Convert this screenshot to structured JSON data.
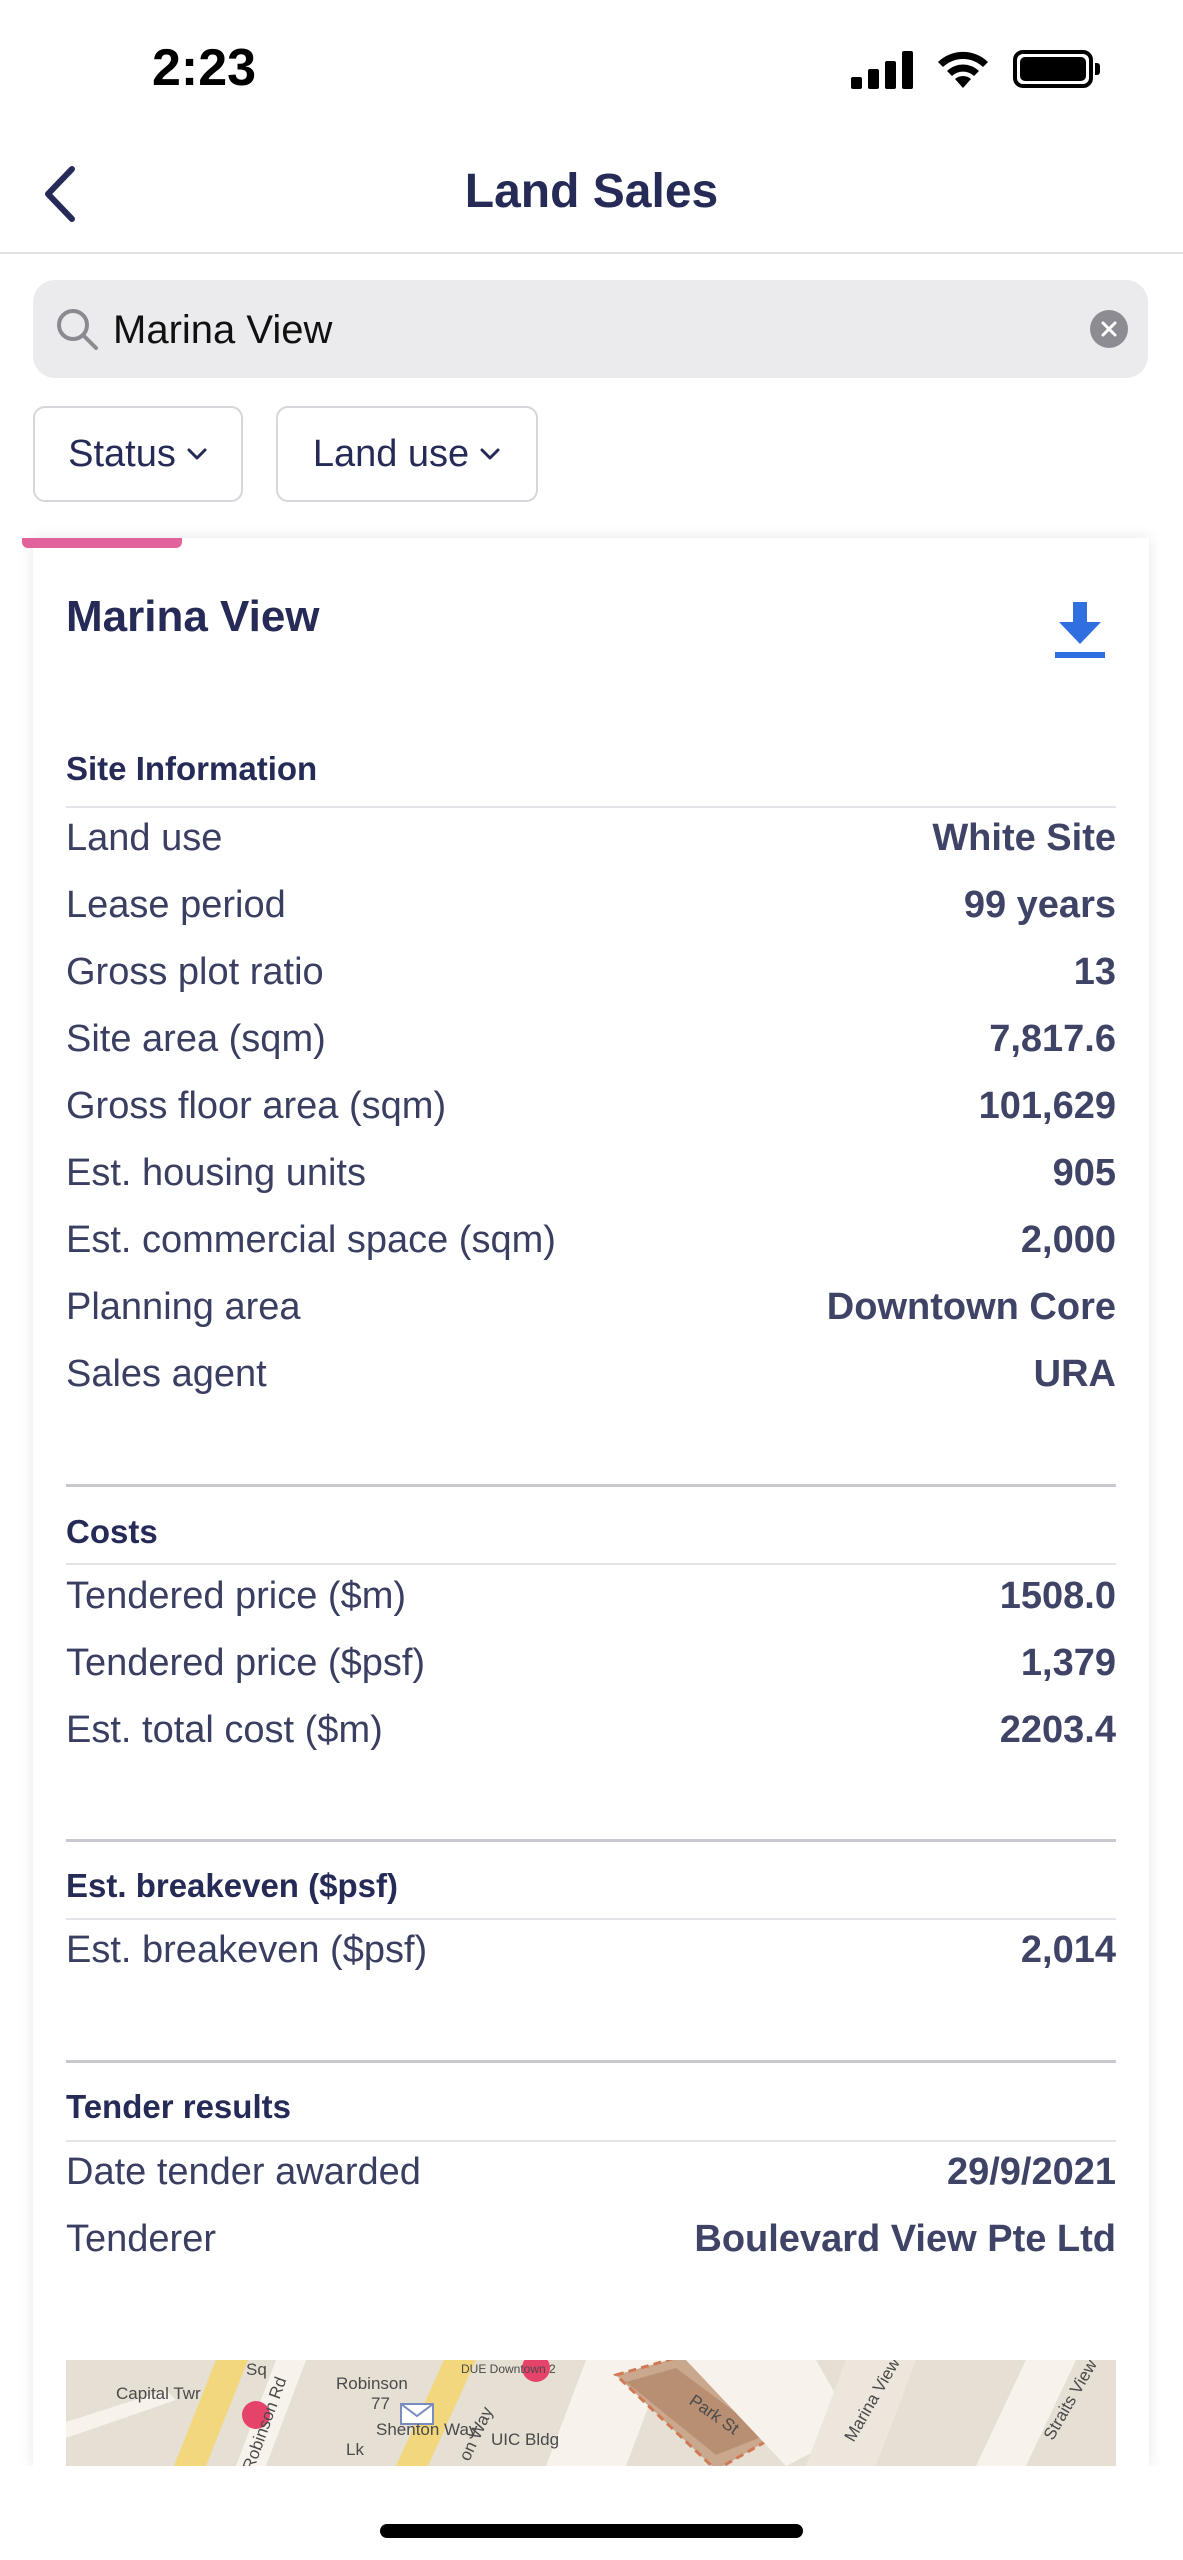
{
  "status_bar": {
    "time": "2:23"
  },
  "nav": {
    "title": "Land Sales",
    "back_icon": "chevron-left-icon"
  },
  "search": {
    "value": "Marina View",
    "placeholder": "",
    "icon": "search-icon",
    "clear_icon": "close-icon"
  },
  "filters": [
    {
      "label": "Status"
    },
    {
      "label": "Land use"
    }
  ],
  "card": {
    "title": "Marina View",
    "accent_color": "#e2639b",
    "download_color": "#2f6fe0",
    "sections": {
      "site": {
        "heading": "Site Information",
        "rows": [
          {
            "label": "Land use",
            "value": "White Site"
          },
          {
            "label": "Lease period",
            "value": "99 years"
          },
          {
            "label": "Gross plot ratio",
            "value": "13"
          },
          {
            "label": "Site area (sqm)",
            "value": "7,817.6"
          },
          {
            "label": "Gross floor area (sqm)",
            "value": "101,629"
          },
          {
            "label": "Est. housing units",
            "value": "905"
          },
          {
            "label": "Est. commercial space (sqm)",
            "value": "2,000"
          },
          {
            "label": "Planning area",
            "value": "Downtown Core"
          },
          {
            "label": "Sales agent",
            "value": "URA"
          }
        ]
      },
      "costs": {
        "heading": "Costs",
        "rows": [
          {
            "label": "Tendered price ($m)",
            "value": "1508.0"
          },
          {
            "label": "Tendered price ($psf)",
            "value": "1,379"
          },
          {
            "label": "Est. total cost ($m)",
            "value": "2203.4"
          }
        ]
      },
      "breakeven": {
        "heading": "Est. breakeven ($psf)",
        "rows": [
          {
            "label": "Est. breakeven ($psf)",
            "value": "2,014"
          }
        ]
      },
      "tender": {
        "heading": "Tender results",
        "rows": [
          {
            "label": "Date tender awarded",
            "value": "29/9/2021"
          },
          {
            "label": "Tenderer",
            "value": "Boulevard View Pte Ltd"
          }
        ]
      }
    }
  },
  "map": {
    "labels": [
      "Capital Twr",
      "Sq",
      "Robinson",
      "77",
      "Shenton Way",
      "DUE Downtown 2",
      "UIC Bldg",
      "Park St",
      "Marina View",
      "Straits View",
      "Robinson Rd",
      "Lk",
      "on Way"
    ]
  }
}
